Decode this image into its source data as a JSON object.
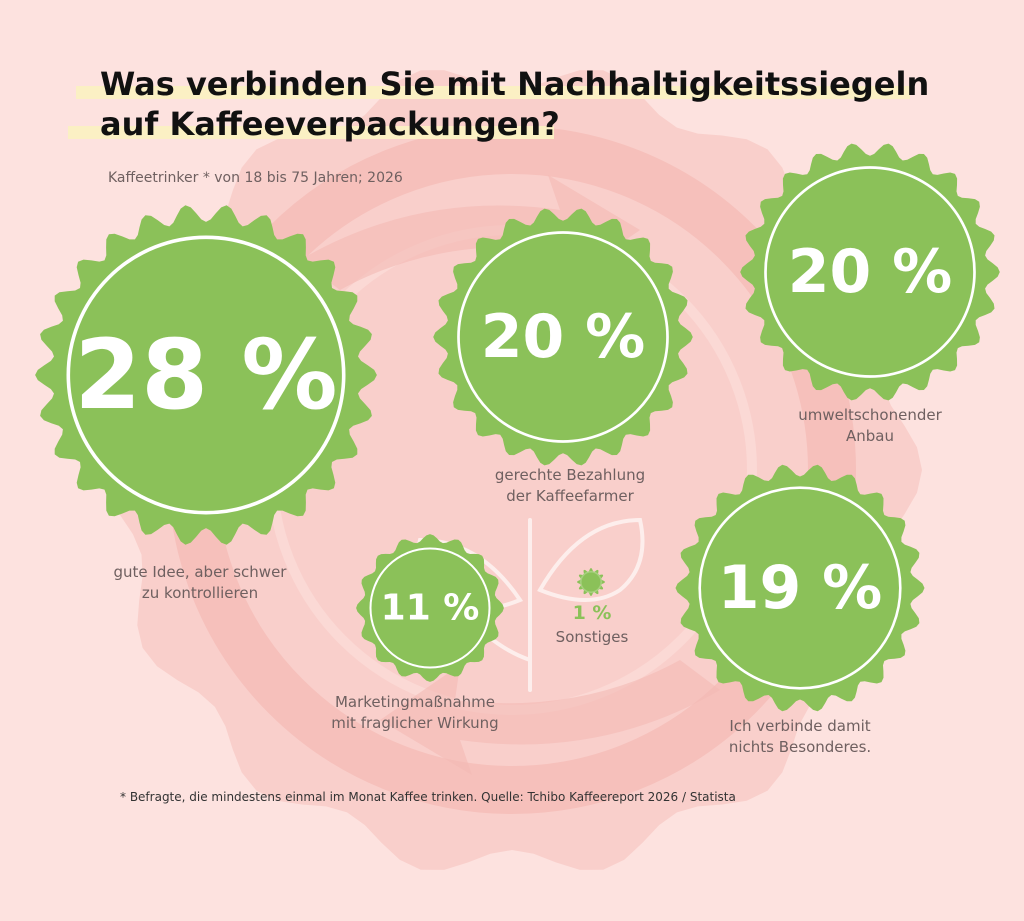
{
  "title_lines": [
    "Was verbinden Sie mit Nachhaltigkeitssiegeln",
    "auf Kaffeeverpackungen?"
  ],
  "subtitle": "Kaffeetrinker * von 18 bis 75 Jahren; 2026",
  "footnote": "* Befragte, die mindestens einmal im Monat Kaffee trinken. Quelle: Tchibo Kaffeereport 2026 / Statista",
  "colors": {
    "background": "#fde2df",
    "watermark": "#f7c4c0",
    "seal": "#8bc159",
    "seal_ring": "#ffffff",
    "label_text": "#6f6060",
    "highlight": "#fbf0c4"
  },
  "icons": [
    "recycle-watermark-icon",
    "leaf-sprout-icon"
  ],
  "chart_data": {
    "type": "pie",
    "unit": "%",
    "title": "Was verbinden Sie mit Nachhaltigkeitssiegeln auf Kaffeeverpackungen?",
    "subtitle": "Kaffeetrinker * von 18 bis 75 Jahren; 2026",
    "items": [
      {
        "display": "28 %",
        "value": 28,
        "label_lines": [
          "gute Idee, aber schwer",
          "zu kontrollieren"
        ]
      },
      {
        "display": "20 %",
        "value": 20,
        "label_lines": [
          "gerechte Bezahlung",
          "der Kaffeefarmer"
        ]
      },
      {
        "display": "20 %",
        "value": 20,
        "label_lines": [
          "umweltschonender",
          "Anbau"
        ]
      },
      {
        "display": "11 %",
        "value": 11,
        "label_lines": [
          "Marketingmaßnahme",
          "mit fraglicher Wirkung"
        ]
      },
      {
        "display": "1 %",
        "value": 1,
        "label_lines": [
          "Sonstiges"
        ]
      },
      {
        "display": "19 %",
        "value": 19,
        "label_lines": [
          "Ich verbinde damit",
          "nichts Besonderes."
        ]
      }
    ]
  }
}
